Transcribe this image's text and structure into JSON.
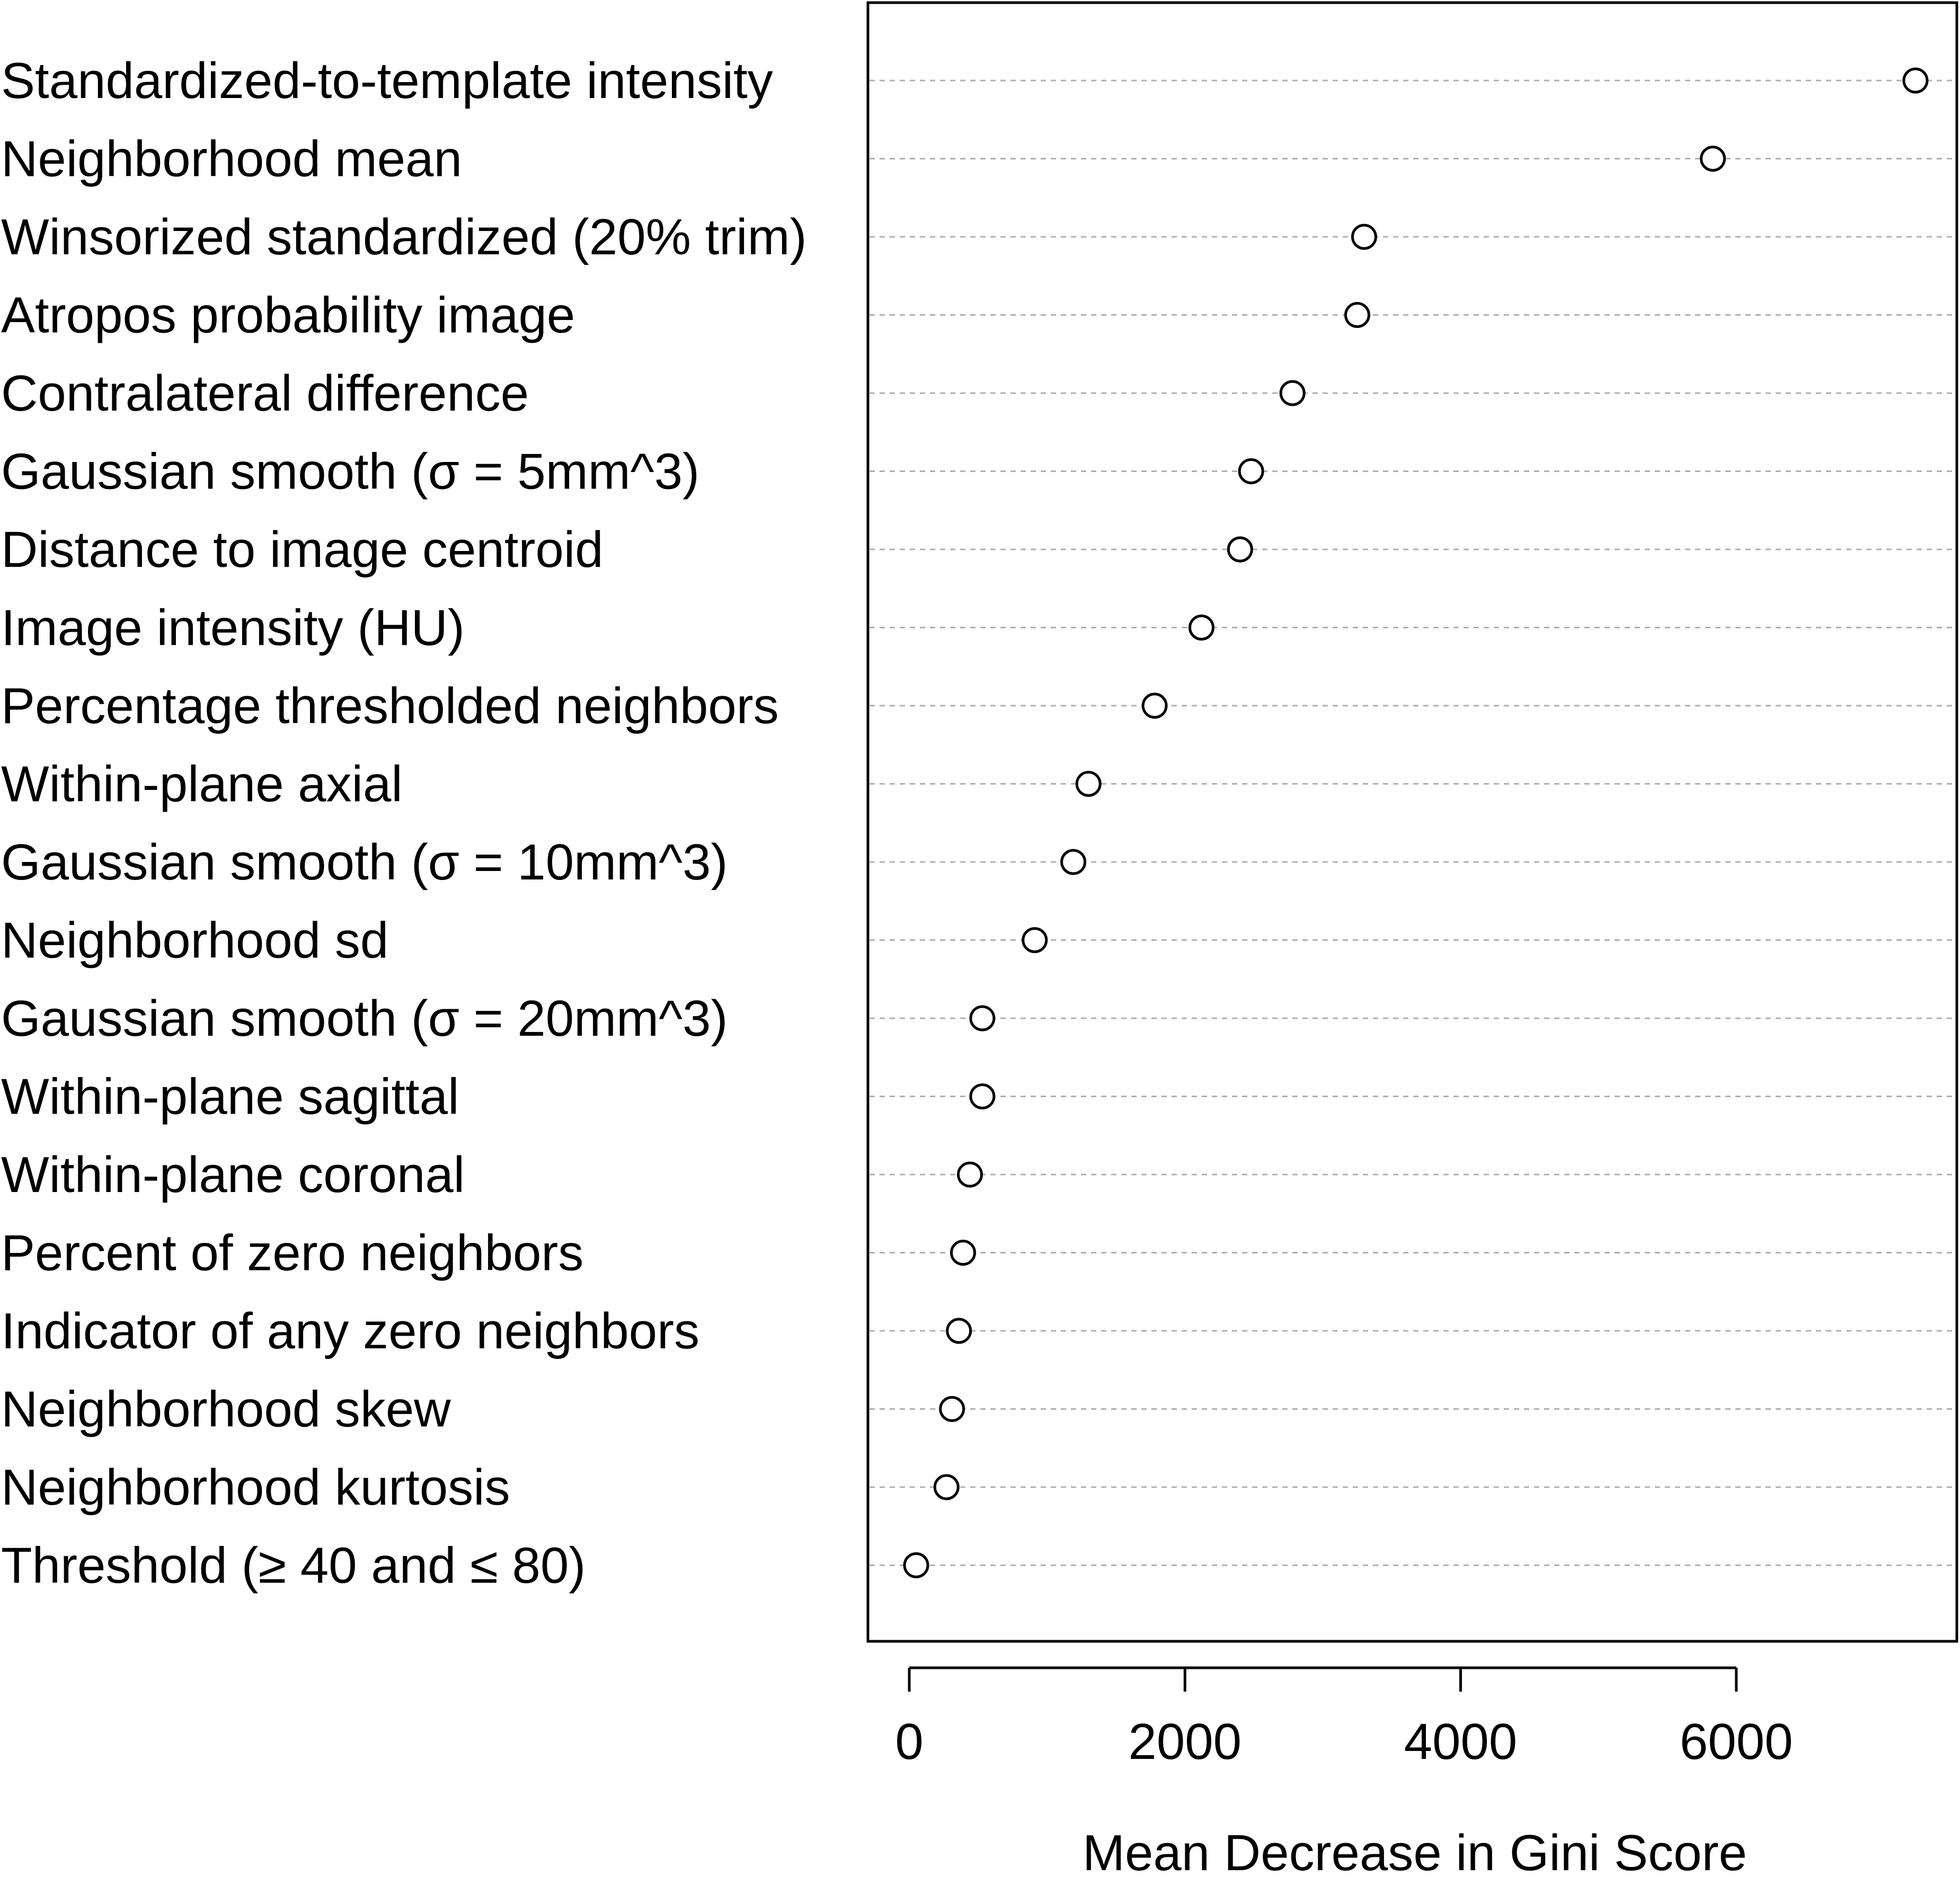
{
  "chart_data": {
    "type": "scatter",
    "title": "",
    "xlabel": "Mean Decrease in Gini Score",
    "ylabel": "",
    "xlim": [
      -300,
      7600
    ],
    "xticks": [
      0,
      2000,
      4000,
      6000
    ],
    "xtick_labels": [
      "0",
      "2000",
      "4000",
      "6000"
    ],
    "grid": "horizontal dotted",
    "categories": [
      "Standardized-to-template intensity",
      "Neighborhood mean",
      "Winsorized standardized (20% trim)",
      "Atropos probability image",
      "Contralateral difference",
      "Gaussian smooth (σ = 5mm^3)",
      "Distance to image centroid",
      "Image intensity (HU)",
      "Percentage thresholded neighbors",
      "Within-plane axial",
      "Gaussian smooth (σ = 10mm^3)",
      "Neighborhood sd",
      "Gaussian smooth (σ = 20mm^3)",
      "Within-plane sagittal",
      "Within-plane coronal",
      "Percent of zero neighbors",
      "Indicator of any zero neighbors",
      "Neighborhood skew",
      "Neighborhood kurtosis",
      "Threshold (≥ 40 and ≤ 80)"
    ],
    "values": [
      7300,
      5830,
      3300,
      3250,
      2780,
      2480,
      2400,
      2120,
      1780,
      1300,
      1190,
      910,
      530,
      530,
      440,
      390,
      360,
      310,
      270,
      50
    ]
  }
}
